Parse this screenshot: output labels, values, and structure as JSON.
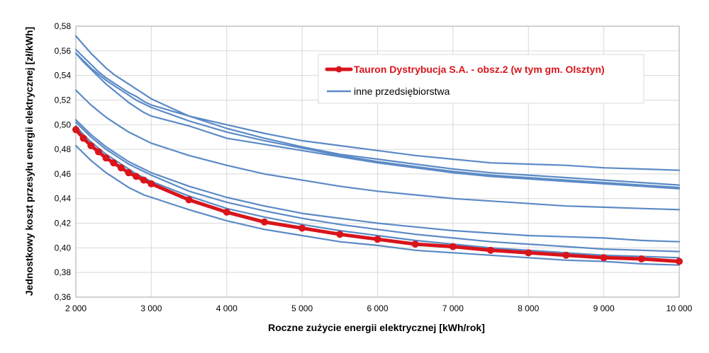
{
  "chart_data": {
    "type": "line",
    "xlabel": "Roczne zużycie energii elektrycznej [kWh/rok]",
    "ylabel": "Jednostkowy koszt przesyłu energii elektrycznej [zł/kWh]",
    "xlim": [
      2000,
      10000
    ],
    "ylim": [
      0.36,
      0.58
    ],
    "x_ticks": [
      2000,
      3000,
      4000,
      5000,
      6000,
      7000,
      8000,
      9000,
      10000
    ],
    "x_tick_labels": [
      "2 000",
      "3 000",
      "4 000",
      "5 000",
      "6 000",
      "7 000",
      "8 000",
      "9 000",
      "10 000"
    ],
    "y_ticks": [
      0.36,
      0.38,
      0.4,
      0.42,
      0.44,
      0.46,
      0.48,
      0.5,
      0.52,
      0.54,
      0.56,
      0.58
    ],
    "y_tick_labels": [
      "0,36",
      "0,38",
      "0,40",
      "0,42",
      "0,44",
      "0,46",
      "0,48",
      "0,50",
      "0,52",
      "0,54",
      "0,56",
      "0,58"
    ],
    "grid": true,
    "legend_position": "top-right",
    "colors": {
      "highlight": "#d9141b",
      "others": "#5b8ac6",
      "grid": "#d9d9d9",
      "axis": "#a6a6a6"
    },
    "legend": {
      "highlight_label": "Tauron Dystrybucja S.A. - obsz.2 (w tym gm. Olsztyn)",
      "others_label": "inne przedsiębiorstwa"
    },
    "x": [
      2000,
      2100,
      2200,
      2300,
      2400,
      2500,
      2600,
      2700,
      2800,
      2900,
      3000,
      3500,
      4000,
      4500,
      5000,
      5500,
      6000,
      6500,
      7000,
      7500,
      8000,
      8500,
      9000,
      9500,
      10000
    ],
    "series": [
      {
        "name": "Tauron Dystrybucja S.A. - obsz.2 (w tym gm. Olsztyn)",
        "role": "highlight",
        "values": [
          0.496,
          0.489,
          0.483,
          0.478,
          0.473,
          0.469,
          0.465,
          0.461,
          0.458,
          0.455,
          0.452,
          0.439,
          0.429,
          0.421,
          0.416,
          0.411,
          0.407,
          0.403,
          0.401,
          0.398,
          0.396,
          0.394,
          0.392,
          0.391,
          0.389
        ]
      },
      {
        "role": "other",
        "values": [
          0.572,
          0.565,
          0.558,
          0.552,
          0.546,
          0.541,
          0.537,
          0.533,
          0.529,
          0.525,
          0.521,
          0.507,
          0.5,
          0.493,
          0.487,
          0.483,
          0.479,
          0.475,
          0.472,
          0.469,
          0.468,
          0.467,
          0.465,
          0.464,
          0.463
        ]
      },
      {
        "role": "other",
        "values": [
          0.561,
          0.555,
          0.549,
          0.543,
          0.538,
          0.534,
          0.53,
          0.526,
          0.523,
          0.519,
          0.516,
          0.507,
          0.497,
          0.489,
          0.482,
          0.476,
          0.472,
          0.468,
          0.464,
          0.461,
          0.459,
          0.457,
          0.455,
          0.453,
          0.451
        ]
      },
      {
        "role": "other",
        "values": [
          0.558,
          0.552,
          0.546,
          0.541,
          0.536,
          0.532,
          0.528,
          0.524,
          0.52,
          0.517,
          0.514,
          0.503,
          0.494,
          0.487,
          0.481,
          0.475,
          0.47,
          0.466,
          0.462,
          0.459,
          0.457,
          0.455,
          0.453,
          0.451,
          0.449
        ]
      },
      {
        "role": "other",
        "values": [
          0.558,
          0.551,
          0.545,
          0.539,
          0.533,
          0.528,
          0.523,
          0.518,
          0.514,
          0.51,
          0.507,
          0.499,
          0.489,
          0.484,
          0.479,
          0.474,
          0.469,
          0.465,
          0.461,
          0.458,
          0.456,
          0.454,
          0.452,
          0.45,
          0.448
        ]
      },
      {
        "role": "other",
        "values": [
          0.528,
          0.522,
          0.516,
          0.511,
          0.506,
          0.502,
          0.498,
          0.494,
          0.491,
          0.488,
          0.485,
          0.475,
          0.467,
          0.46,
          0.455,
          0.45,
          0.446,
          0.443,
          0.44,
          0.438,
          0.436,
          0.434,
          0.433,
          0.432,
          0.431
        ]
      },
      {
        "role": "other",
        "values": [
          0.504,
          0.498,
          0.492,
          0.487,
          0.482,
          0.478,
          0.474,
          0.47,
          0.467,
          0.464,
          0.461,
          0.45,
          0.441,
          0.434,
          0.428,
          0.424,
          0.42,
          0.417,
          0.414,
          0.412,
          0.41,
          0.409,
          0.408,
          0.406,
          0.405
        ]
      },
      {
        "role": "other",
        "values": [
          0.502,
          0.496,
          0.49,
          0.485,
          0.48,
          0.476,
          0.472,
          0.468,
          0.465,
          0.462,
          0.459,
          0.446,
          0.437,
          0.43,
          0.424,
          0.419,
          0.415,
          0.411,
          0.408,
          0.405,
          0.403,
          0.401,
          0.399,
          0.398,
          0.397
        ]
      },
      {
        "role": "other",
        "values": [
          0.499,
          0.492,
          0.486,
          0.481,
          0.476,
          0.472,
          0.468,
          0.464,
          0.46,
          0.457,
          0.454,
          0.442,
          0.432,
          0.425,
          0.419,
          0.414,
          0.41,
          0.406,
          0.403,
          0.4,
          0.398,
          0.396,
          0.394,
          0.393,
          0.392
        ]
      },
      {
        "role": "other",
        "values": [
          0.483,
          0.477,
          0.471,
          0.466,
          0.461,
          0.457,
          0.453,
          0.449,
          0.446,
          0.443,
          0.441,
          0.431,
          0.422,
          0.415,
          0.41,
          0.405,
          0.402,
          0.398,
          0.396,
          0.394,
          0.392,
          0.39,
          0.389,
          0.387,
          0.386
        ]
      }
    ]
  }
}
